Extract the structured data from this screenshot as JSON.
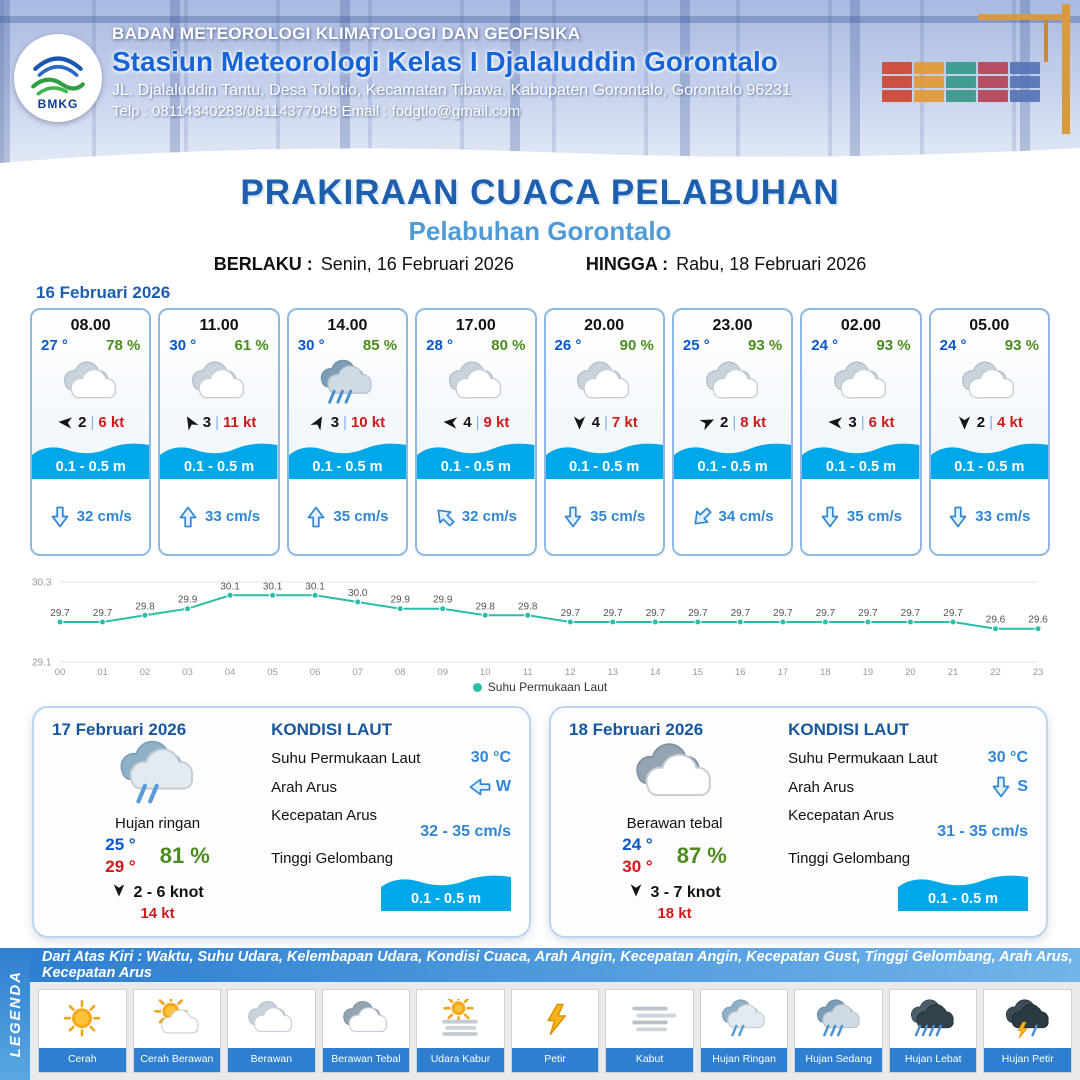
{
  "header": {
    "logo_text": "BMKG",
    "agency": "BADAN METEOROLOGI KLIMATOLOGI DAN GEOFISIKA",
    "station": "Stasiun Meteorologi Kelas I Djalaluddin Gorontalo",
    "address": "JL. Djalaluddin Tantu, Desa Tolotio, Kecamatan Tibawa, Kabupaten Gorontalo, Gorontalo 96231",
    "contact": "Telp : 08114340283/08114377048 Email : fodgtlo@gmail.com"
  },
  "title": {
    "main": "PRAKIRAAN CUACA PELABUHAN",
    "sub": "Pelabuhan Gorontalo",
    "berlaku_label": "BERLAKU :",
    "berlaku_value": "Senin, 16 Februari 2026",
    "hingga_label": "HINGGA :",
    "hingga_value": "Rabu, 18 Februari 2026"
  },
  "forecast_date": "16 Februari 2026",
  "forecast_cards": [
    {
      "time": "08.00",
      "temp": "27 °",
      "humidity": "78 %",
      "weather": "berawan",
      "wind_dir_deg": 185,
      "wind_bft": "2",
      "wind_speed": "6 kt",
      "wave": "0.1 - 0.5 m",
      "current_dir_deg": 0,
      "current_speed": "32 cm/s"
    },
    {
      "time": "11.00",
      "temp": "30 °",
      "humidity": "61 %",
      "weather": "berawan",
      "wind_dir_deg": 240,
      "wind_bft": "3",
      "wind_speed": "11 kt",
      "wave": "0.1 - 0.5 m",
      "current_dir_deg": 180,
      "current_speed": "33 cm/s"
    },
    {
      "time": "14.00",
      "temp": "30 °",
      "humidity": "85 %",
      "weather": "hujan-sedang",
      "wind_dir_deg": 300,
      "wind_bft": "3",
      "wind_speed": "10 kt",
      "wave": "0.1 - 0.5 m",
      "current_dir_deg": 180,
      "current_speed": "35 cm/s"
    },
    {
      "time": "17.00",
      "temp": "28 °",
      "humidity": "80 %",
      "weather": "berawan",
      "wind_dir_deg": 185,
      "wind_bft": "4",
      "wind_speed": "9 kt",
      "wave": "0.1 - 0.5 m",
      "current_dir_deg": 135,
      "current_speed": "32 cm/s"
    },
    {
      "time": "20.00",
      "temp": "26 °",
      "humidity": "90 %",
      "weather": "berawan",
      "wind_dir_deg": 90,
      "wind_bft": "4",
      "wind_speed": "7 kt",
      "wave": "0.1 - 0.5 m",
      "current_dir_deg": 0,
      "current_speed": "35 cm/s"
    },
    {
      "time": "23.00",
      "temp": "25 °",
      "humidity": "93 %",
      "weather": "berawan",
      "wind_dir_deg": 335,
      "wind_bft": "2",
      "wind_speed": "8 kt",
      "wave": "0.1 - 0.5 m",
      "current_dir_deg": 45,
      "current_speed": "34 cm/s"
    },
    {
      "time": "02.00",
      "temp": "24 °",
      "humidity": "93 %",
      "weather": "berawan",
      "wind_dir_deg": 185,
      "wind_bft": "3",
      "wind_speed": "6 kt",
      "wave": "0.1 - 0.5 m",
      "current_dir_deg": 0,
      "current_speed": "35 cm/s"
    },
    {
      "time": "05.00",
      "temp": "24 °",
      "humidity": "93 %",
      "weather": "berawan",
      "wind_dir_deg": 90,
      "wind_bft": "2",
      "wind_speed": "4 kt",
      "wave": "0.1 - 0.5 m",
      "current_dir_deg": 0,
      "current_speed": "33 cm/s"
    }
  ],
  "chart_data": {
    "type": "line",
    "legend_label": "Suhu Permukaan Laut",
    "x": [
      "00",
      "01",
      "02",
      "03",
      "04",
      "05",
      "06",
      "07",
      "08",
      "09",
      "10",
      "11",
      "12",
      "13",
      "14",
      "15",
      "16",
      "17",
      "18",
      "19",
      "20",
      "21",
      "22",
      "23"
    ],
    "values": [
      29.7,
      29.7,
      29.8,
      29.9,
      30.1,
      30.1,
      30.1,
      30.0,
      29.9,
      29.9,
      29.8,
      29.8,
      29.7,
      29.7,
      29.7,
      29.7,
      29.7,
      29.7,
      29.7,
      29.7,
      29.7,
      29.7,
      29.6,
      29.6
    ],
    "ylim": [
      29.1,
      30.3
    ],
    "yticks": [
      30.3,
      29.1
    ],
    "line_color": "#2abda8",
    "grid": true,
    "legend_position": "bottom"
  },
  "day_cards": [
    {
      "date": "17 Februari 2026",
      "weather": "hujan-ringan",
      "condition": "Hujan ringan",
      "temp_min": "25 °",
      "temp_max": "29 °",
      "humidity": "81 %",
      "wind_dir_deg": 90,
      "wind_range": "2 - 6 knot",
      "gust": "14 kt",
      "sea": {
        "title": "KONDISI LAUT",
        "sst_label": "Suhu Permukaan Laut",
        "sst": "30 °C",
        "dir_label": "Arah Arus",
        "dir_deg": 90,
        "dir_letter": "W",
        "speed_label": "Kecepatan Arus",
        "speed": "32  - 35 cm/s",
        "wave_label": "Tinggi Gelombang",
        "wave": "0.1 - 0.5 m"
      }
    },
    {
      "date": "18 Februari 2026",
      "weather": "berawan-tebal",
      "condition": "Berawan tebal",
      "temp_min": "24 °",
      "temp_max": "30 °",
      "humidity": "87 %",
      "wind_dir_deg": 90,
      "wind_range": "3 - 7 knot",
      "gust": "18 kt",
      "sea": {
        "title": "KONDISI LAUT",
        "sst_label": "Suhu Permukaan Laut",
        "sst": "30 °C",
        "dir_label": "Arah Arus",
        "dir_deg": 0,
        "dir_letter": "S",
        "speed_label": "Kecepatan Arus",
        "speed": "31  - 35 cm/s",
        "wave_label": "Tinggi Gelombang",
        "wave": "0.1 - 0.5 m"
      }
    }
  ],
  "legend": {
    "vertical_label": "LEGENDA",
    "note": "Dari Atas Kiri : Waktu, Suhu Udara, Kelembapan Udara, Kondisi Cuaca, Arah Angin, Kecepatan Angin, Kecepatan Gust, Tinggi Gelombang, Arah Arus, Kecepatan Arus",
    "items": [
      {
        "label": "Cerah",
        "icon": "cerah"
      },
      {
        "label": "Cerah Berawan",
        "icon": "cerah-berawan"
      },
      {
        "label": "Berawan",
        "icon": "berawan"
      },
      {
        "label": "Berawan Tebal",
        "icon": "berawan-tebal"
      },
      {
        "label": "Udara Kabur",
        "icon": "udara-kabur"
      },
      {
        "label": "Petir",
        "icon": "petir"
      },
      {
        "label": "Kabut",
        "icon": "kabut"
      },
      {
        "label": "Hujan Ringan",
        "icon": "hujan-ringan"
      },
      {
        "label": "Hujan Sedang",
        "icon": "hujan-sedang"
      },
      {
        "label": "Hujan Lebat",
        "icon": "hujan-lebat"
      },
      {
        "label": "Hujan Petir",
        "icon": "hujan-petir"
      }
    ]
  },
  "colors": {
    "title_blue": "#1d5fae",
    "subtitle_blue": "#4f9bd8",
    "temp_blue": "#0a57c9",
    "humidity_green": "#4c8c1e",
    "wind_speed_red": "#cf1a1a",
    "wave_band_blue": "#00a7e9",
    "current_blue": "#2f86d4",
    "sst_line_teal": "#2abda8",
    "footer_blue": "#2e7fd0"
  }
}
